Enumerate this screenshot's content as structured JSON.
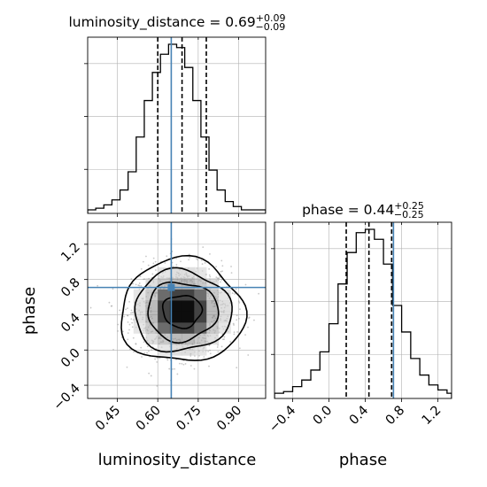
{
  "chart_data": [
    {
      "type": "histogram",
      "panel": "marginal",
      "parameter": "luminosity_distance",
      "title": {
        "text": "luminosity_distance = 0.69",
        "sup": "+0.09",
        "sub": "−0.09"
      },
      "xlim": [
        0.34,
        1.0
      ],
      "bins": [
        0.34,
        0.37,
        0.4,
        0.43,
        0.46,
        0.49,
        0.52,
        0.55,
        0.58,
        0.61,
        0.64,
        0.67,
        0.7,
        0.73,
        0.76,
        0.79,
        0.82,
        0.85,
        0.88,
        0.91,
        0.94,
        0.97,
        1.0
      ],
      "counts": [
        0,
        1,
        3,
        6,
        12,
        23,
        44,
        66,
        83,
        94,
        100,
        98,
        86,
        66,
        44,
        24,
        12,
        5,
        2,
        0,
        0,
        0
      ],
      "quantile_lines": [
        0.6,
        0.69,
        0.78
      ],
      "truth": 0.65,
      "grid": true
    },
    {
      "type": "histogram",
      "panel": "marginal",
      "parameter": "phase",
      "title": {
        "text": "phase = 0.44",
        "sup": "+0.25",
        "sub": "−0.25"
      },
      "xlim": [
        -0.6,
        1.35
      ],
      "xlabel": "phase",
      "xticks": [
        "−0.4",
        "0.0",
        "0.4",
        "0.8",
        "1.2"
      ],
      "xtick_values": [
        -0.4,
        0.0,
        0.4,
        0.8,
        1.2
      ],
      "bins": [
        -0.6,
        -0.5,
        -0.4,
        -0.3,
        -0.2,
        -0.1,
        0.0,
        0.1,
        0.2,
        0.3,
        0.4,
        0.5,
        0.6,
        0.7,
        0.8,
        0.9,
        1.0,
        1.1,
        1.2,
        1.3,
        1.35
      ],
      "counts": [
        1,
        2,
        5,
        9,
        15,
        26,
        43,
        67,
        86,
        98,
        100,
        94,
        79,
        54,
        38,
        22,
        12,
        6,
        3,
        1
      ],
      "quantile_lines": [
        0.19,
        0.44,
        0.69
      ],
      "truth": 0.71,
      "grid": true
    },
    {
      "type": "scatter_contour",
      "panel": "joint",
      "x_parameter": "luminosity_distance",
      "y_parameter": "phase",
      "xlabel": "luminosity_distance",
      "ylabel": "phase",
      "xlim": [
        0.34,
        1.0
      ],
      "ylim": [
        -0.55,
        1.45
      ],
      "xticks": [
        "0.45",
        "0.60",
        "0.75",
        "0.90"
      ],
      "xtick_values": [
        0.45,
        0.6,
        0.75,
        0.9
      ],
      "yticks": [
        "−0.4",
        "0.0",
        "0.4",
        "0.8",
        "1.2"
      ],
      "ytick_values": [
        -0.4,
        0.0,
        0.4,
        0.8,
        1.2
      ],
      "mean": [
        0.69,
        0.44
      ],
      "sd": [
        0.09,
        0.25
      ],
      "contour_levels_sigma": [
        0.8,
        1.45,
        2.0,
        2.55
      ],
      "truth": [
        0.65,
        0.71
      ],
      "grid": true
    }
  ],
  "colors": {
    "truth": "#4682b4",
    "hist": "#000000",
    "grid": "#b0b0b0",
    "scatter": "#9a9a9a"
  }
}
